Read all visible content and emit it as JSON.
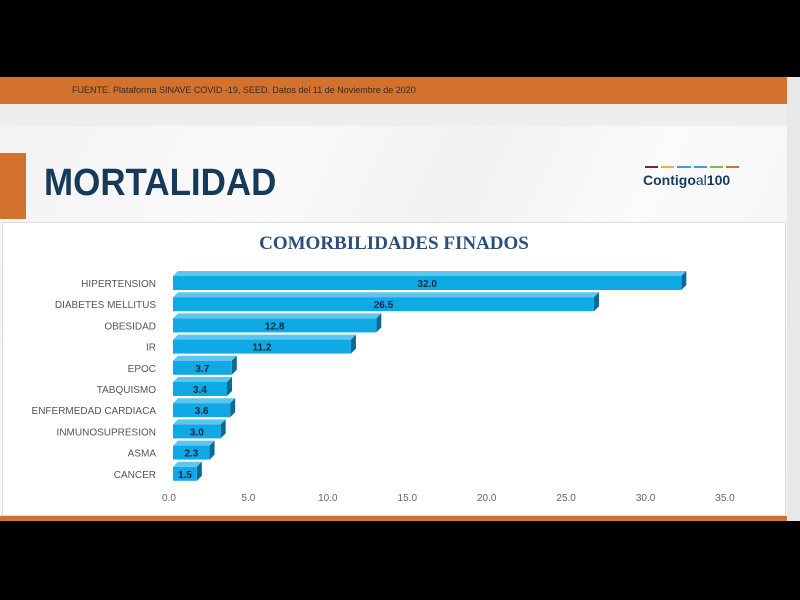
{
  "header": {
    "source": "FUENTE. Plataforma SINAVE COVID -19, SEED. Datos del 11 de Noviembre de 2020"
  },
  "slide": {
    "title": "MORTALIDAD",
    "logo": {
      "part1": "Contigo",
      "part2": "al",
      "part3": "100",
      "stripe_colors": [
        "#7a2140",
        "#e3b43c",
        "#3aa0d8",
        "#3aa0d8",
        "#7bbf4a",
        "#d2722e"
      ]
    }
  },
  "colors": {
    "accent": "#d2722e",
    "title": "#163a5c",
    "bar": "#0fa9e6",
    "bar_side": "#0b6a94"
  },
  "chart_data": {
    "type": "bar",
    "orientation": "horizontal",
    "title": "COMORBILIDADES FINADOS",
    "categories": [
      "HIPERTENSION",
      "DIABETES MELLITUS",
      "OBESIDAD",
      "IR",
      "EPOC",
      "TABQUISMO",
      "ENFERMEDAD CARDIACA",
      "INMUNOSUPRESION",
      "ASMA",
      "CANCER"
    ],
    "values": [
      32.0,
      26.5,
      12.8,
      11.2,
      3.7,
      3.4,
      3.6,
      3.0,
      2.3,
      1.5
    ],
    "value_labels": [
      "32.0",
      "26.5",
      "12.8",
      "11.2",
      "3.7",
      "3.4",
      "3.6",
      "3.0",
      "2.3",
      "1.5"
    ],
    "xlim": [
      0,
      35
    ],
    "xticks": [
      "0.0",
      "5.0",
      "10.0",
      "15.0",
      "20.0",
      "25.0",
      "30.0",
      "35.0"
    ],
    "xtick_values": [
      0,
      5,
      10,
      15,
      20,
      25,
      30,
      35
    ],
    "grid": false,
    "style": "3d"
  }
}
